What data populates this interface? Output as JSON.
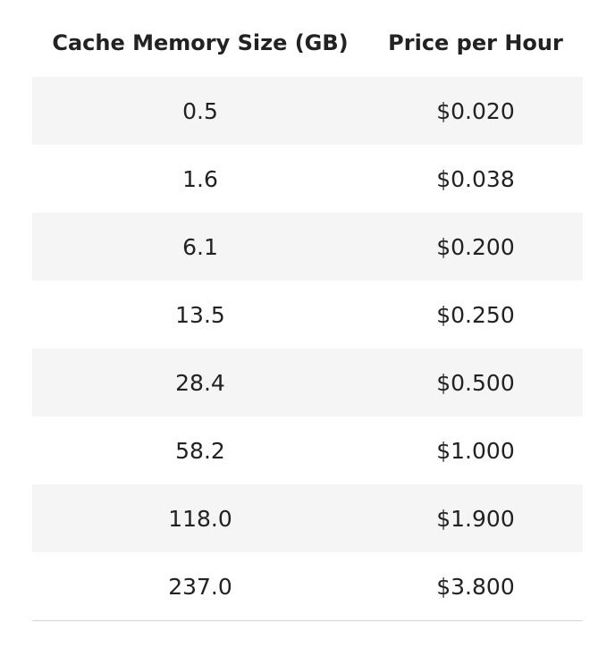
{
  "table": {
    "headers": {
      "size": "Cache Memory Size (GB)",
      "price": "Price per Hour"
    },
    "rows": [
      {
        "size": "0.5",
        "price": "$0.020"
      },
      {
        "size": "1.6",
        "price": "$0.038"
      },
      {
        "size": "6.1",
        "price": "$0.200"
      },
      {
        "size": "13.5",
        "price": "$0.250"
      },
      {
        "size": "28.4",
        "price": "$0.500"
      },
      {
        "size": "58.2",
        "price": "$1.000"
      },
      {
        "size": "118.0",
        "price": "$1.900"
      },
      {
        "size": "237.0",
        "price": "$3.800"
      }
    ]
  },
  "colors": {
    "text": "#222222",
    "shaded_row": "#f5f5f5",
    "divider": "#d5d5d5",
    "background": "#ffffff"
  }
}
